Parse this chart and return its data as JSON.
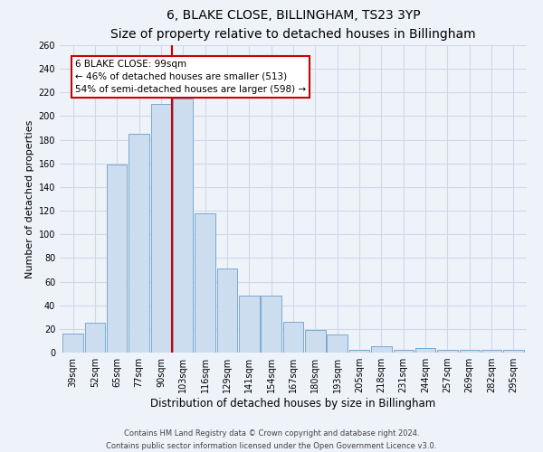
{
  "title": "6, BLAKE CLOSE, BILLINGHAM, TS23 3YP",
  "subtitle": "Size of property relative to detached houses in Billingham",
  "xlabel": "Distribution of detached houses by size in Billingham",
  "ylabel": "Number of detached properties",
  "bar_labels": [
    "39sqm",
    "52sqm",
    "65sqm",
    "77sqm",
    "90sqm",
    "103sqm",
    "116sqm",
    "129sqm",
    "141sqm",
    "154sqm",
    "167sqm",
    "180sqm",
    "193sqm",
    "205sqm",
    "218sqm",
    "231sqm",
    "244sqm",
    "257sqm",
    "269sqm",
    "282sqm",
    "295sqm"
  ],
  "bar_values": [
    16,
    25,
    159,
    185,
    210,
    215,
    118,
    71,
    48,
    48,
    26,
    19,
    15,
    2,
    5,
    2,
    4,
    2,
    2,
    2,
    2
  ],
  "bar_color": "#ccddf0",
  "bar_edge_color": "#7aaad0",
  "vline_x": 4.5,
  "vline_color": "#cc0000",
  "annotation_title": "6 BLAKE CLOSE: 99sqm",
  "annotation_line1": "← 46% of detached houses are smaller (513)",
  "annotation_line2": "54% of semi-detached houses are larger (598) →",
  "annotation_box_color": "#ffffff",
  "annotation_box_edge": "#cc0000",
  "ylim": [
    0,
    260
  ],
  "yticks": [
    0,
    20,
    40,
    60,
    80,
    100,
    120,
    140,
    160,
    180,
    200,
    220,
    240,
    260
  ],
  "footer1": "Contains HM Land Registry data © Crown copyright and database right 2024.",
  "footer2": "Contains public sector information licensed under the Open Government Licence v3.0.",
  "title_fontsize": 10,
  "subtitle_fontsize": 9,
  "xlabel_fontsize": 8.5,
  "ylabel_fontsize": 8,
  "tick_fontsize": 7,
  "annotation_fontsize": 7.5,
  "footer_fontsize": 6,
  "bg_color": "#eef2f9",
  "grid_color": "#d0d8e8",
  "title_color": "#111111"
}
